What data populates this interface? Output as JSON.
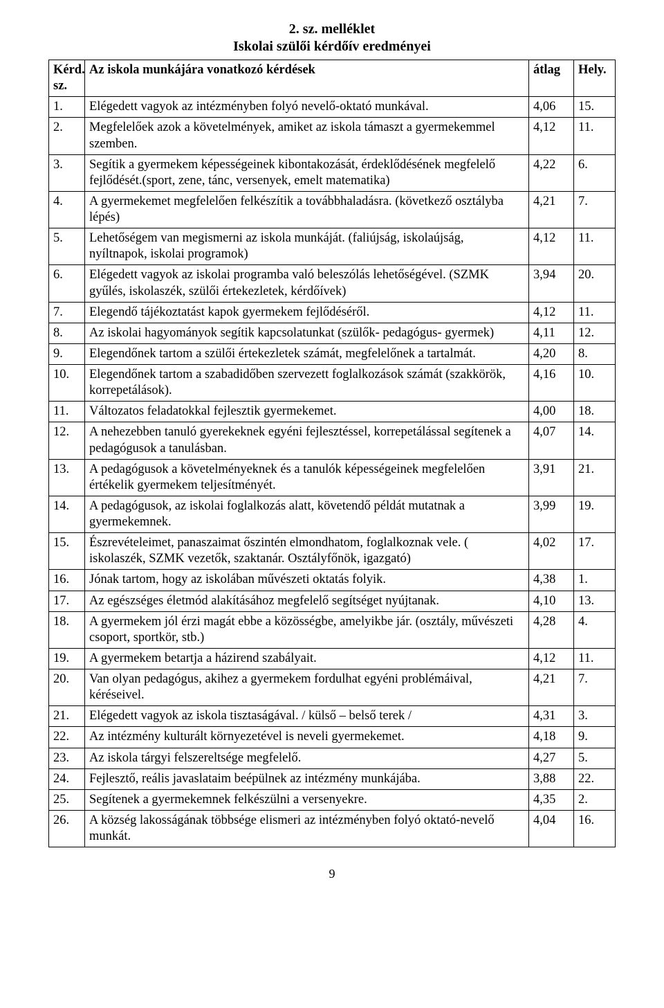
{
  "title": {
    "line1": "2. sz. melléklet",
    "line2": "Iskolai szülői kérdőív eredményei"
  },
  "header": {
    "col1": "Kérd. sz.",
    "col2": "Az iskola munkájára vonatkozó kérdések",
    "col3": "átlag",
    "col4": "Hely."
  },
  "rows": [
    {
      "n": "1.",
      "t": "Elégedett vagyok az intézményben folyó nevelő-oktató munkával.",
      "a": "4,06",
      "r": "15."
    },
    {
      "n": "2.",
      "t": "Megfelelőek azok a követelmények, amiket az iskola támaszt a gyermekemmel szemben.",
      "a": "4,12",
      "r": "11."
    },
    {
      "n": "3.",
      "t": "Segítik a gyermekem képességeinek kibontakozását, érdeklődésének megfelelő fejlődését.(sport, zene, tánc, versenyek, emelt matematika)",
      "a": "4,22",
      "r": "6."
    },
    {
      "n": "4.",
      "t": "A gyermekemet megfelelően felkészítik a továbbhaladásra. (következő osztályba lépés)",
      "a": "4,21",
      "r": "7."
    },
    {
      "n": "5.",
      "t": "Lehetőségem van megismerni az iskola munkáját. (faliújság, iskolaújság, nyíltnapok, iskolai programok)",
      "a": "4,12",
      "r": "11."
    },
    {
      "n": "6.",
      "t": "Elégedett vagyok az iskolai programba való beleszólás lehetőségével. (SZMK gyűlés, iskolaszék, szülői értekezletek, kérdőívek)",
      "a": "3,94",
      "r": "20."
    },
    {
      "n": "7.",
      "t": "Elegendő tájékoztatást kapok gyermekem fejlődéséről.",
      "a": "4,12",
      "r": "11."
    },
    {
      "n": "8.",
      "t": "Az iskolai hagyományok segítik kapcsolatunkat (szülők- pedagógus- gyermek)",
      "a": "4,11",
      "r": "12."
    },
    {
      "n": "9.",
      "t": "Elegendőnek tartom a szülői értekezletek számát, megfelelőnek a tartalmát.",
      "a": "4,20",
      "r": "8."
    },
    {
      "n": "10.",
      "t": "Elegendőnek tartom a szabadidőben szervezett foglalkozások számát (szakkörök, korrepetálások).",
      "a": "4,16",
      "r": "10."
    },
    {
      "n": "11.",
      "t": "Változatos feladatokkal fejlesztik gyermekemet.",
      "a": "4,00",
      "r": "18."
    },
    {
      "n": "12.",
      "t": "A nehezebben tanuló gyerekeknek egyéni fejlesztéssel, korrepetálással segítenek a pedagógusok a tanulásban.",
      "a": "4,07",
      "r": "14."
    },
    {
      "n": "13.",
      "t": "A pedagógusok a követelményeknek és a tanulók képességeinek megfelelően értékelik gyermekem teljesítményét.",
      "a": "3,91",
      "r": "21."
    },
    {
      "n": "14.",
      "t": "A pedagógusok, az iskolai foglalkozás alatt, követendő példát mutatnak a gyermekemnek.",
      "a": "3,99",
      "r": "19."
    },
    {
      "n": "15.",
      "t": "Észrevételeimet, panaszaimat őszintén elmondhatom, foglalkoznak vele. ( iskolaszék, SZMK vezetők, szaktanár. Osztályfőnök, igazgató)",
      "a": "4,02",
      "r": "17."
    },
    {
      "n": "16.",
      "t": "Jónak tartom, hogy az iskolában művészeti oktatás folyik.",
      "a": "4,38",
      "r": "1."
    },
    {
      "n": "17.",
      "t": "Az egészséges életmód alakításához megfelelő segítséget nyújtanak.",
      "a": "4,10",
      "r": "13."
    },
    {
      "n": "18.",
      "t": "A gyermekem jól érzi magát ebbe a közösségbe, amelyikbe jár. (osztály, művészeti csoport, sportkör, stb.)",
      "a": "4,28",
      "r": "4."
    },
    {
      "n": "19.",
      "t": "A gyermekem betartja a házirend szabályait.",
      "a": "4,12",
      "r": "11."
    },
    {
      "n": "20.",
      "t": "Van olyan pedagógus, akihez a gyermekem fordulhat egyéni problémáival, kéréseivel.",
      "a": "4,21",
      "r": "7."
    },
    {
      "n": "21.",
      "t": "Elégedett vagyok az iskola tisztaságával. / külső – belső terek /",
      "a": "4,31",
      "r": "3."
    },
    {
      "n": "22.",
      "t": "Az intézmény kulturált környezetével is neveli gyermekemet.",
      "a": "4,18",
      "r": "9."
    },
    {
      "n": "23.",
      "t": "Az iskola tárgyi felszereltsége megfelelő.",
      "a": "4,27",
      "r": "5."
    },
    {
      "n": "24.",
      "t": "Fejlesztő, reális javaslataim beépülnek az intézmény munkájába.",
      "a": "3,88",
      "r": "22."
    },
    {
      "n": "25.",
      "t": "Segítenek a gyermekemnek felkészülni a versenyekre.",
      "a": "4,35",
      "r": "2."
    },
    {
      "n": "26.",
      "t": "A község lakosságának többsége elismeri az intézményben folyó oktató-nevelő munkát.",
      "a": "4,04",
      "r": "16."
    }
  ],
  "pagenum": "9",
  "colors": {
    "text": "#000000",
    "bg": "#ffffff",
    "border": "#000000"
  },
  "font": {
    "family": "Times New Roman",
    "body_pt": 14,
    "title_pt": 15
  }
}
